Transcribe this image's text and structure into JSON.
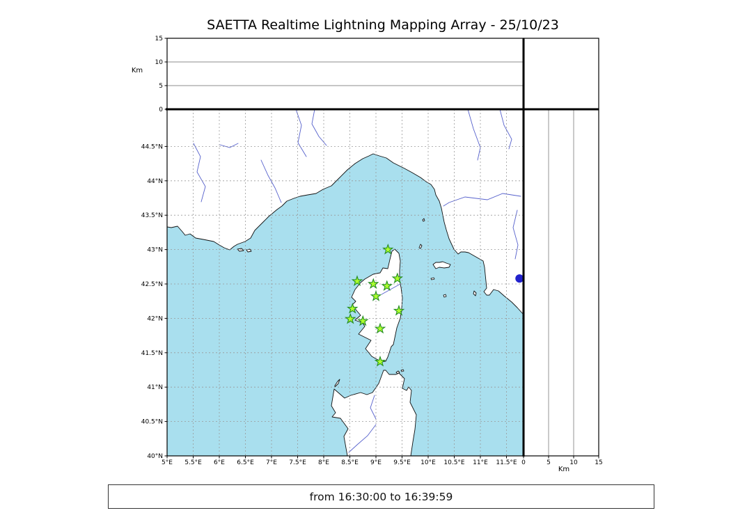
{
  "title": "SAETTA Realtime Lightning Mapping Array - 25/10/23",
  "caption": "from 16:30:00 to 16:39:59",
  "alt_axis": {
    "label": "Km",
    "range": [
      0,
      15
    ],
    "ticks": [
      {
        "value": 0,
        "label": "0"
      },
      {
        "value": 5,
        "label": "5"
      },
      {
        "value": 10,
        "label": "10"
      },
      {
        "value": 15,
        "label": "15"
      }
    ]
  },
  "map_axes": {
    "lon_range": [
      5,
      11.83
    ],
    "lat_range": [
      40,
      45.04
    ],
    "lon_ticks": [
      {
        "value": 5,
        "label": "5°E"
      },
      {
        "value": 5.5,
        "label": "5.5°E"
      },
      {
        "value": 6,
        "label": "6°E"
      },
      {
        "value": 6.5,
        "label": "6.5°E"
      },
      {
        "value": 7,
        "label": "7°E"
      },
      {
        "value": 7.5,
        "label": "7.5°E"
      },
      {
        "value": 8,
        "label": "8°E"
      },
      {
        "value": 8.5,
        "label": "8.5°E"
      },
      {
        "value": 9,
        "label": "9°E"
      },
      {
        "value": 9.5,
        "label": "9.5°E"
      },
      {
        "value": 10,
        "label": "10°E"
      },
      {
        "value": 10.5,
        "label": "10.5°E"
      },
      {
        "value": 11,
        "label": "11°E"
      },
      {
        "value": 11.5,
        "label": "11.5°E"
      }
    ],
    "lat_ticks": [
      {
        "value": 40,
        "label": "40°N"
      },
      {
        "value": 40.5,
        "label": "40.5°N"
      },
      {
        "value": 41,
        "label": "41°N"
      },
      {
        "value": 41.5,
        "label": "41.5°N"
      },
      {
        "value": 42,
        "label": "42°N"
      },
      {
        "value": 42.5,
        "label": "42.5°N"
      },
      {
        "value": 43,
        "label": "43°N"
      },
      {
        "value": 43.5,
        "label": "43.5°N"
      },
      {
        "value": 44,
        "label": "44°N"
      },
      {
        "value": 44.5,
        "label": "44.5°N"
      }
    ]
  },
  "stations": [
    {
      "lon": 9.23,
      "lat": 43.0
    },
    {
      "lon": 8.64,
      "lat": 42.54
    },
    {
      "lon": 8.95,
      "lat": 42.5
    },
    {
      "lon": 9.21,
      "lat": 42.47
    },
    {
      "lon": 9.41,
      "lat": 42.58
    },
    {
      "lon": 9.0,
      "lat": 42.32
    },
    {
      "lon": 8.55,
      "lat": 42.14
    },
    {
      "lon": 9.44,
      "lat": 42.11
    },
    {
      "lon": 8.51,
      "lat": 41.99
    },
    {
      "lon": 8.75,
      "lat": 41.96
    },
    {
      "lon": 9.08,
      "lat": 41.85
    },
    {
      "lon": 9.08,
      "lat": 41.37
    }
  ],
  "detection": {
    "lon": 11.75,
    "lat": 42.58
  },
  "colors": {
    "sea": "#a9dfee",
    "land": "#ffffff",
    "coast": "#111111",
    "grid": "#999999",
    "panel_grid": "#666666",
    "river": "#5560cc",
    "station_fill": "#adff2f",
    "station_edge": "#228b22",
    "detection": "#2222cc",
    "frame": "#000000"
  }
}
